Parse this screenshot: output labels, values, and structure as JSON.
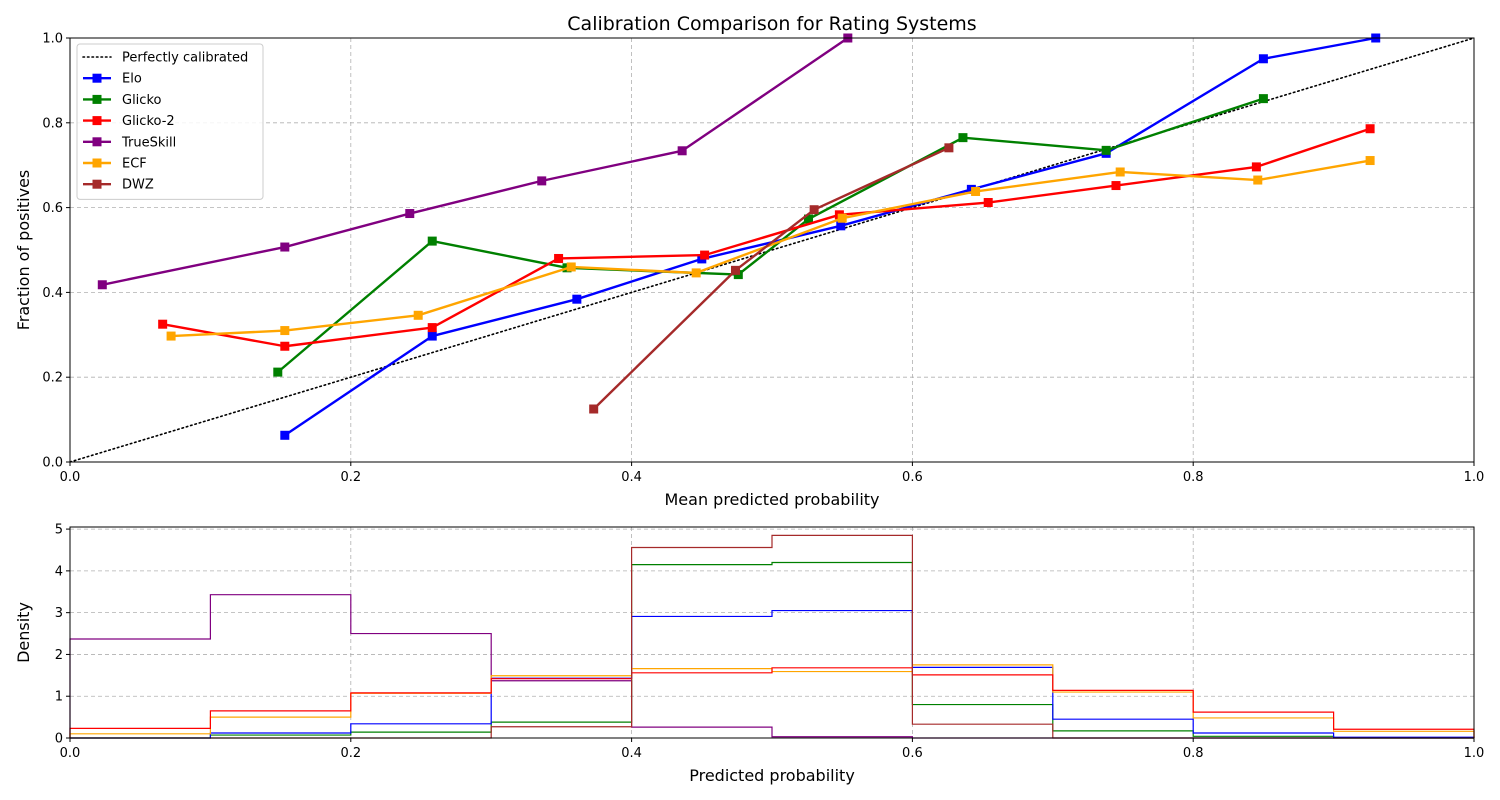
{
  "chart_data": [
    {
      "type": "line",
      "title": "Calibration Comparison for Rating Systems",
      "xlabel": "Mean predicted probability",
      "ylabel": "Fraction of positives",
      "xlim": [
        0,
        1
      ],
      "ylim": [
        0,
        1
      ],
      "xticks": [
        "0.0",
        "0.2",
        "0.4",
        "0.6",
        "0.8",
        "1.0"
      ],
      "yticks": [
        "0.0",
        "0.2",
        "0.4",
        "0.6",
        "0.8",
        "1.0"
      ],
      "grid": true,
      "legend_position": "upper-left",
      "reference_line": {
        "name": "Perfectly calibrated",
        "x": [
          0,
          1
        ],
        "y": [
          0,
          1
        ],
        "color": "#000000",
        "style": "dotted"
      },
      "series": [
        {
          "name": "Elo",
          "color": "#0000ff",
          "x": [
            0.153,
            0.258,
            0.361,
            0.45,
            0.549,
            0.642,
            0.738,
            0.85,
            0.93
          ],
          "y": [
            0.063,
            0.297,
            0.384,
            0.479,
            0.557,
            0.643,
            0.728,
            0.951,
            1.0
          ]
        },
        {
          "name": "Glicko",
          "color": "#008000",
          "x": [
            0.148,
            0.258,
            0.354,
            0.476,
            0.526,
            0.636,
            0.738,
            0.85
          ],
          "y": [
            0.212,
            0.521,
            0.458,
            0.442,
            0.573,
            0.765,
            0.735,
            0.857
          ]
        },
        {
          "name": "Glicko-2",
          "color": "#ff0000",
          "x": [
            0.066,
            0.153,
            0.258,
            0.348,
            0.452,
            0.548,
            0.654,
            0.745,
            0.845,
            0.926
          ],
          "y": [
            0.325,
            0.273,
            0.317,
            0.48,
            0.488,
            0.583,
            0.612,
            0.652,
            0.696,
            0.786
          ]
        },
        {
          "name": "TrueSkill",
          "color": "#800080",
          "x": [
            0.023,
            0.153,
            0.242,
            0.336,
            0.436,
            0.554
          ],
          "y": [
            0.418,
            0.507,
            0.586,
            0.663,
            0.734,
            1.0
          ]
        },
        {
          "name": "ECF",
          "color": "#ffa500",
          "x": [
            0.072,
            0.153,
            0.248,
            0.357,
            0.446,
            0.55,
            0.645,
            0.748,
            0.846,
            0.926
          ],
          "y": [
            0.297,
            0.31,
            0.346,
            0.46,
            0.446,
            0.575,
            0.638,
            0.684,
            0.665,
            0.711
          ]
        },
        {
          "name": "DWZ",
          "color": "#a52a2a",
          "x": [
            0.373,
            0.474,
            0.53,
            0.626
          ],
          "y": [
            0.125,
            0.452,
            0.595,
            0.741
          ]
        }
      ]
    },
    {
      "type": "histogram",
      "title": "",
      "xlabel": "Predicted probability",
      "ylabel": "Density",
      "xlim": [
        0,
        1
      ],
      "ylim": [
        0,
        5.05
      ],
      "xticks": [
        "0.0",
        "0.2",
        "0.4",
        "0.6",
        "0.8",
        "1.0"
      ],
      "yticks": [
        "0",
        "1",
        "2",
        "3",
        "4",
        "5"
      ],
      "grid": true,
      "bin_edges": [
        0,
        0.1,
        0.2,
        0.3,
        0.4,
        0.5,
        0.6,
        0.7,
        0.8,
        0.9,
        1.0
      ],
      "series": [
        {
          "name": "TrueSkill",
          "color": "#800080",
          "values": [
            2.37,
            3.43,
            2.5,
            1.37,
            0.26,
            0.03,
            0,
            0,
            0,
            0
          ]
        },
        {
          "name": "Glicko",
          "color": "#008000",
          "values": [
            0,
            0.07,
            0.14,
            0.38,
            4.15,
            4.2,
            0.8,
            0.17,
            0.04,
            0
          ]
        },
        {
          "name": "Elo",
          "color": "#0000ff",
          "values": [
            0,
            0.12,
            0.34,
            1.43,
            2.91,
            3.05,
            1.69,
            0.45,
            0.12,
            0.02
          ]
        },
        {
          "name": "ECF",
          "color": "#ffa500",
          "values": [
            0.1,
            0.5,
            1.07,
            1.49,
            1.66,
            1.59,
            1.75,
            1.1,
            0.48,
            0.16
          ]
        },
        {
          "name": "Glicko-2",
          "color": "#ff0000",
          "values": [
            0.23,
            0.65,
            1.08,
            1.42,
            1.56,
            1.68,
            1.51,
            1.14,
            0.62,
            0.21
          ]
        },
        {
          "name": "DWZ",
          "color": "#a52a2a",
          "values": [
            0,
            0,
            0,
            0.27,
            4.56,
            4.85,
            0.33,
            0,
            0,
            0
          ]
        }
      ]
    }
  ]
}
